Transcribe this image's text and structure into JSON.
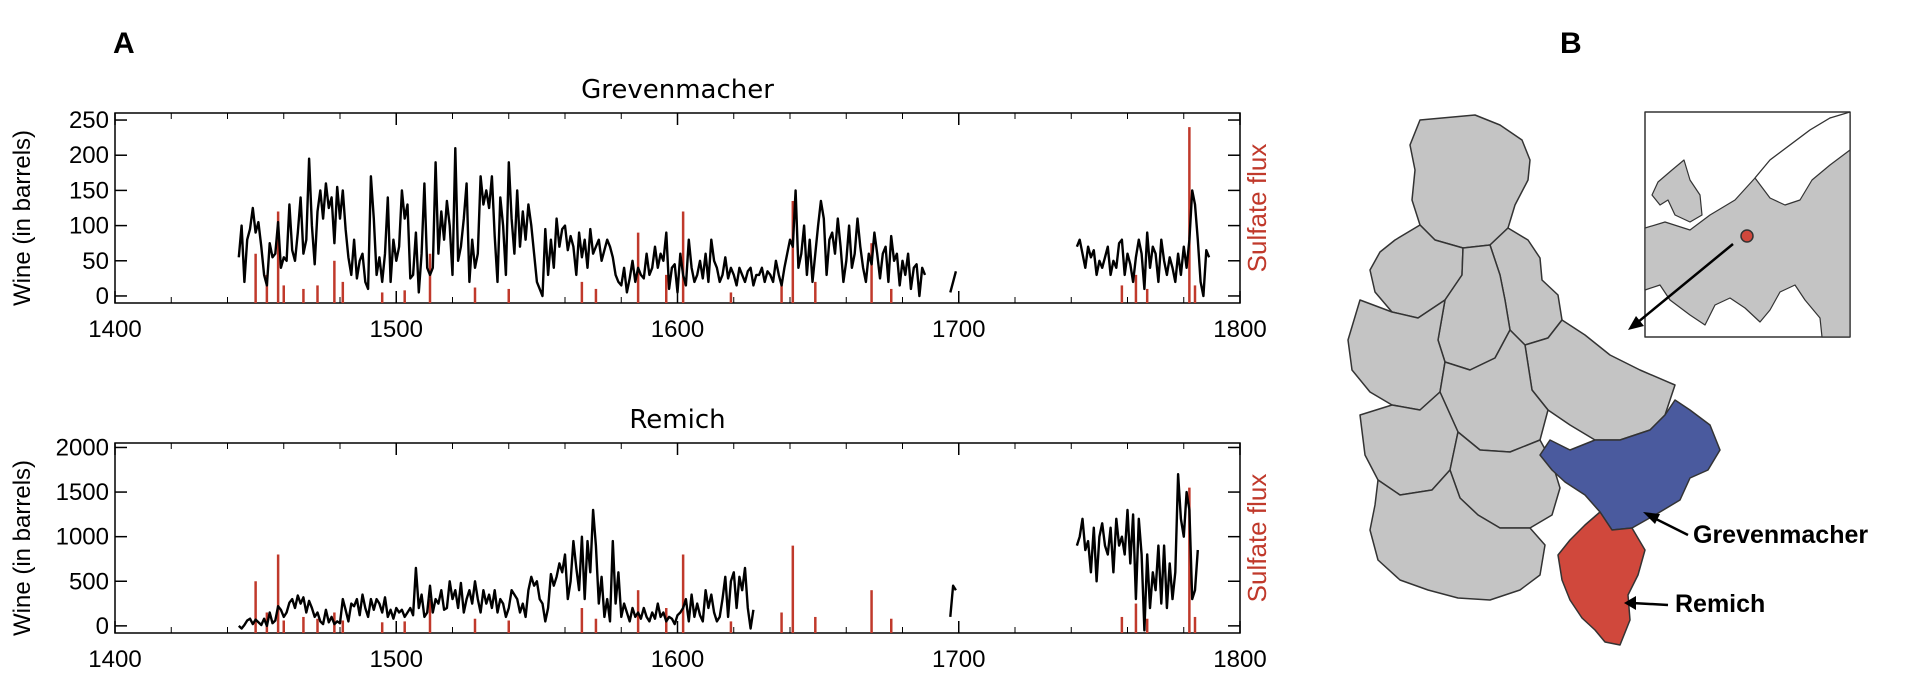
{
  "panels": {
    "a": "A",
    "b": "B"
  },
  "colors": {
    "wine": "#000000",
    "sulfate": "#c0392b",
    "region_default": "#c4c4c4",
    "grevenmacher": "#4a5a9e",
    "remich": "#d0483c",
    "border": "#333333"
  },
  "map": {
    "label_grevenmacher": "Grevenmacher",
    "label_remich": "Remich"
  },
  "chart_data": [
    {
      "type": "line",
      "title": "Grevenmacher",
      "ylabel": "Wine (in barrels)",
      "y2label": "Sulfate flux",
      "xlim": [
        1400,
        1800
      ],
      "ylim": [
        -10,
        260
      ],
      "xticks": [
        "1400",
        "1500",
        "1600",
        "1700",
        "1800"
      ],
      "yticks": [
        {
          "value": 0,
          "label": "0"
        },
        {
          "value": 50,
          "label": "50"
        },
        {
          "value": 100,
          "label": "100"
        },
        {
          "value": 150,
          "label": "150"
        },
        {
          "value": 200,
          "label": "200"
        },
        {
          "value": 250,
          "label": "250"
        }
      ],
      "series": [
        {
          "segments": [
            {
              "start": 1444,
              "values": [
                55,
                100,
                20,
                80,
                95,
                125,
                90,
                105,
                70,
                30,
                15,
                75,
                55,
                60,
                105,
                40,
                55,
                50,
                130,
                65,
                50,
                90,
                140,
                60,
                80,
                195,
                100,
                45,
                120,
                150,
                110,
                160,
                125,
                140,
                75,
                155,
                110,
                150,
                95,
                55,
                30,
                80,
                25,
                50,
                60,
                20,
                10,
                170,
                110,
                30,
                55,
                20,
                60,
                140,
                20,
                80,
                50,
                70,
                150,
                110,
                130,
                25,
                30,
                90,
                5,
                60,
                160,
                40,
                30,
                40,
                190,
                60,
                120,
                80,
                135,
                100,
                30,
                210,
                50,
                70,
                110,
                160,
                20,
                80,
                40,
                60,
                170,
                130,
                150,
                125,
                170,
                85,
                20,
                140,
                100,
                30,
                190,
                110,
                60,
                150,
                70,
                120,
                80,
                130,
                100,
                60,
                20,
                10,
                0,
                95,
                30,
                80,
                40,
                110,
                70,
                95,
                100,
                65,
                85,
                70,
                30,
                90,
                55,
                80,
                40,
                95,
                60,
                70,
                80,
                50,
                65,
                80,
                70,
                55,
                30,
                20,
                15,
                40,
                5,
                25,
                50,
                20,
                40,
                30,
                25,
                60,
                30,
                40,
                70,
                40,
                60,
                50,
                90,
                10,
                40,
                45,
                5,
                60,
                30,
                15,
                80,
                40,
                20,
                30,
                50,
                25,
                60,
                20,
                80,
                50,
                40,
                20,
                30,
                55,
                25,
                40,
                30,
                15,
                40,
                30,
                20,
                35,
                40,
                15,
                30,
                30,
                40,
                20,
                35,
                30,
                20,
                50,
                30,
                15,
                40,
                60,
                80,
                70,
                150,
                40,
                60,
                100,
                30,
                80,
                20,
                60,
                100,
                135,
                110,
                30,
                80,
                90,
                60,
                110,
                70,
                20,
                50,
                100,
                40,
                60,
                110,
                70,
                40,
                20,
                60,
                45,
                90,
                60,
                25,
                60,
                70,
                20,
                85,
                50,
                60,
                15,
                50,
                30,
                60,
                10,
                40,
                45,
                0,
                40,
                30
              ]
            },
            {
              "start": 1697,
              "values": [
                5,
                20,
                35
              ]
            },
            {
              "start": 1742,
              "values": [
                70,
                80,
                60,
                40,
                70,
                55,
                65,
                30,
                50,
                40,
                55,
                70,
                30,
                50,
                40,
                75,
                80,
                30,
                60,
                45,
                20,
                55,
                80,
                60,
                10,
                90,
                40,
                70,
                60,
                20,
                80,
                50,
                30,
                55,
                40,
                20,
                60,
                30,
                70,
                40,
                80,
                150,
                130,
                80,
                20,
                0,
                65,
                55
              ]
            }
          ]
        },
        {
          "name": "Sulfate flux",
          "type": "spikes",
          "baseline": -10,
          "x": [
            1450,
            1454,
            1458,
            1460,
            1467,
            1472,
            1478,
            1481,
            1495,
            1503,
            1512,
            1528,
            1540,
            1566,
            1571,
            1586,
            1596,
            1602,
            1619,
            1637,
            1641,
            1649,
            1669,
            1676,
            1758,
            1763,
            1767,
            1782,
            1784
          ],
          "values": [
            60,
            30,
            120,
            15,
            10,
            15,
            50,
            20,
            5,
            8,
            60,
            12,
            10,
            20,
            10,
            90,
            30,
            120,
            5,
            15,
            135,
            20,
            75,
            10,
            15,
            30,
            10,
            240,
            15
          ]
        }
      ]
    },
    {
      "type": "line",
      "title": "Remich",
      "ylabel": "Wine (in barrels)",
      "y2label": "Sulfate flux",
      "xlim": [
        1400,
        1800
      ],
      "ylim": [
        -80,
        2050
      ],
      "xticks": [
        "1400",
        "1500",
        "1600",
        "1700",
        "1800"
      ],
      "yticks": [
        {
          "value": 0,
          "label": "0"
        },
        {
          "value": 500,
          "label": "500"
        },
        {
          "value": 1000,
          "label": "1000"
        },
        {
          "value": 1500,
          "label": "1500"
        },
        {
          "value": 2000,
          "label": "2000"
        }
      ],
      "series": [
        {
          "segments": [
            {
              "start": 1444,
              "values": [
                0,
                -30,
                10,
                60,
                80,
                20,
                70,
                40,
                10,
                80,
                0,
                150,
                30,
                60,
                220,
                180,
                100,
                150,
                260,
                300,
                200,
                340,
                250,
                320,
                150,
                280,
                200,
                100,
                150,
                50,
                20,
                180,
                40,
                100,
                20,
                50,
                30,
                300,
                180,
                50,
                250,
                220,
                300,
                120,
                350,
                200,
                100,
                300,
                180,
                300,
                250,
                150,
                320,
                100,
                180,
                80,
                200,
                150,
                180,
                100,
                150,
                200,
                120,
                650,
                200,
                350,
                100,
                150,
                450,
                150,
                300,
                250,
                400,
                180,
                200,
                500,
                300,
                400,
                200,
                480,
                150,
                300,
                400,
                250,
                500,
                300,
                150,
                400,
                250,
                350,
                200,
                400,
                150,
                300,
                250,
                100,
                200,
                400,
                350,
                300,
                150,
                250,
                100,
                400,
                550,
                450,
                500,
                300,
                250,
                50,
                200,
                580,
                450,
                550,
                700,
                600,
                800,
                300,
                500,
                950,
                650,
                400,
                1000,
                300,
                950,
                600,
                1300,
                900,
                250,
                550,
                100,
                300,
                50,
                950,
                250,
                600,
                100,
                250,
                150,
                50,
                200,
                100,
                150,
                80,
                200,
                100,
                50,
                150,
                80,
                250,
                100,
                150,
                50,
                100,
                80,
                20,
                120,
                150,
                200,
                300,
                50,
                350,
                100,
                250,
                120,
                50,
                400,
                200,
                350,
                150,
                50,
                100,
                300,
                550,
                100,
                500,
                600,
                200,
                550,
                400,
                650,
                200,
                -30,
                180
              ]
            },
            {
              "start": 1697,
              "values": [
                100,
                450,
                400
              ]
            },
            {
              "start": 1742,
              "values": [
                900,
                1000,
                1200,
                850,
                950,
                600,
                1100,
                500,
                1000,
                1150,
                900,
                800,
                1100,
                600,
                1200,
                900,
                1000,
                800,
                1300,
                700,
                1250,
                300,
                1200,
                800,
                -50,
                800,
                200,
                600,
                400,
                900,
                250,
                900,
                200,
                700,
                300,
                600,
                1700,
                1200,
                1000,
                1500,
                1300,
                300,
                400,
                850
              ]
            }
          ]
        },
        {
          "name": "Sulfate flux",
          "type": "spikes",
          "baseline": -80,
          "x": [
            1450,
            1454,
            1458,
            1460,
            1467,
            1472,
            1478,
            1481,
            1495,
            1503,
            1512,
            1528,
            1540,
            1566,
            1571,
            1586,
            1596,
            1602,
            1619,
            1637,
            1641,
            1649,
            1669,
            1676,
            1758,
            1763,
            1767,
            1782,
            1784
          ],
          "values": [
            500,
            150,
            800,
            60,
            100,
            80,
            150,
            60,
            40,
            50,
            300,
            80,
            60,
            200,
            80,
            400,
            200,
            800,
            50,
            150,
            900,
            100,
            400,
            80,
            100,
            250,
            80,
            1550,
            100
          ]
        }
      ]
    }
  ]
}
